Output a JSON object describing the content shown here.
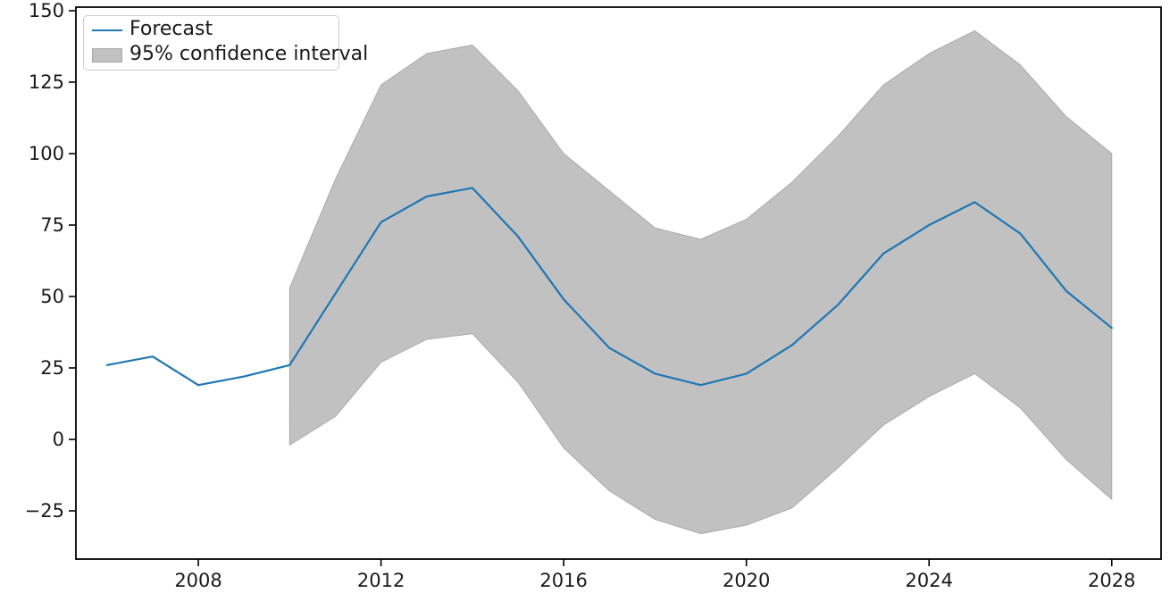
{
  "chart_data": {
    "type": "line",
    "title": "",
    "xlabel": "",
    "ylabel": "",
    "grid": false,
    "x": [
      2006,
      2007,
      2008,
      2009,
      2010,
      2011,
      2012,
      2013,
      2014,
      2015,
      2016,
      2017,
      2018,
      2019,
      2020,
      2021,
      2022,
      2023,
      2024,
      2025,
      2026,
      2027,
      2028
    ],
    "series": [
      {
        "name": "Forecast",
        "color": "#1f77b4",
        "values": [
          26,
          29,
          19,
          22,
          26,
          51,
          76,
          85,
          88,
          71,
          49,
          32,
          23,
          19,
          23,
          33,
          47,
          65,
          75,
          83,
          72,
          52,
          39
        ]
      }
    ],
    "band": {
      "name": "95% confidence interval",
      "fill": "#c1c1c1",
      "edge": "#ababab",
      "x": [
        2010,
        2011,
        2012,
        2013,
        2014,
        2015,
        2016,
        2017,
        2018,
        2019,
        2020,
        2021,
        2022,
        2023,
        2024,
        2025,
        2026,
        2027,
        2028
      ],
      "lower": [
        -2,
        8,
        27,
        35,
        37,
        20,
        -3,
        -18,
        -28,
        -33,
        -30,
        -24,
        -10,
        5,
        15,
        23,
        11,
        -7,
        -21
      ],
      "upper": [
        53,
        91,
        124,
        135,
        138,
        122,
        100,
        87,
        74,
        70,
        77,
        90,
        106,
        124,
        135,
        143,
        131,
        113,
        100
      ]
    },
    "legend": {
      "position": "upper left"
    },
    "x_ticks": {
      "values": [
        2008,
        2012,
        2016,
        2020,
        2024,
        2028
      ],
      "labels": [
        "2008",
        "2012",
        "2016",
        "2020",
        "2024",
        "2028"
      ]
    },
    "y_ticks": {
      "values": [
        150,
        125,
        100,
        75,
        50,
        25,
        0,
        -25
      ],
      "labels": [
        "150",
        "125",
        "100",
        "75",
        "50",
        "25",
        "0",
        "−25"
      ]
    },
    "x_range": [
      2005.32,
      2029.08
    ],
    "y_range": [
      -41.88,
      151.25
    ]
  },
  "colors": {
    "axis": "#000000",
    "tick_label": "#1a1a1a",
    "background": "#ffffff"
  }
}
